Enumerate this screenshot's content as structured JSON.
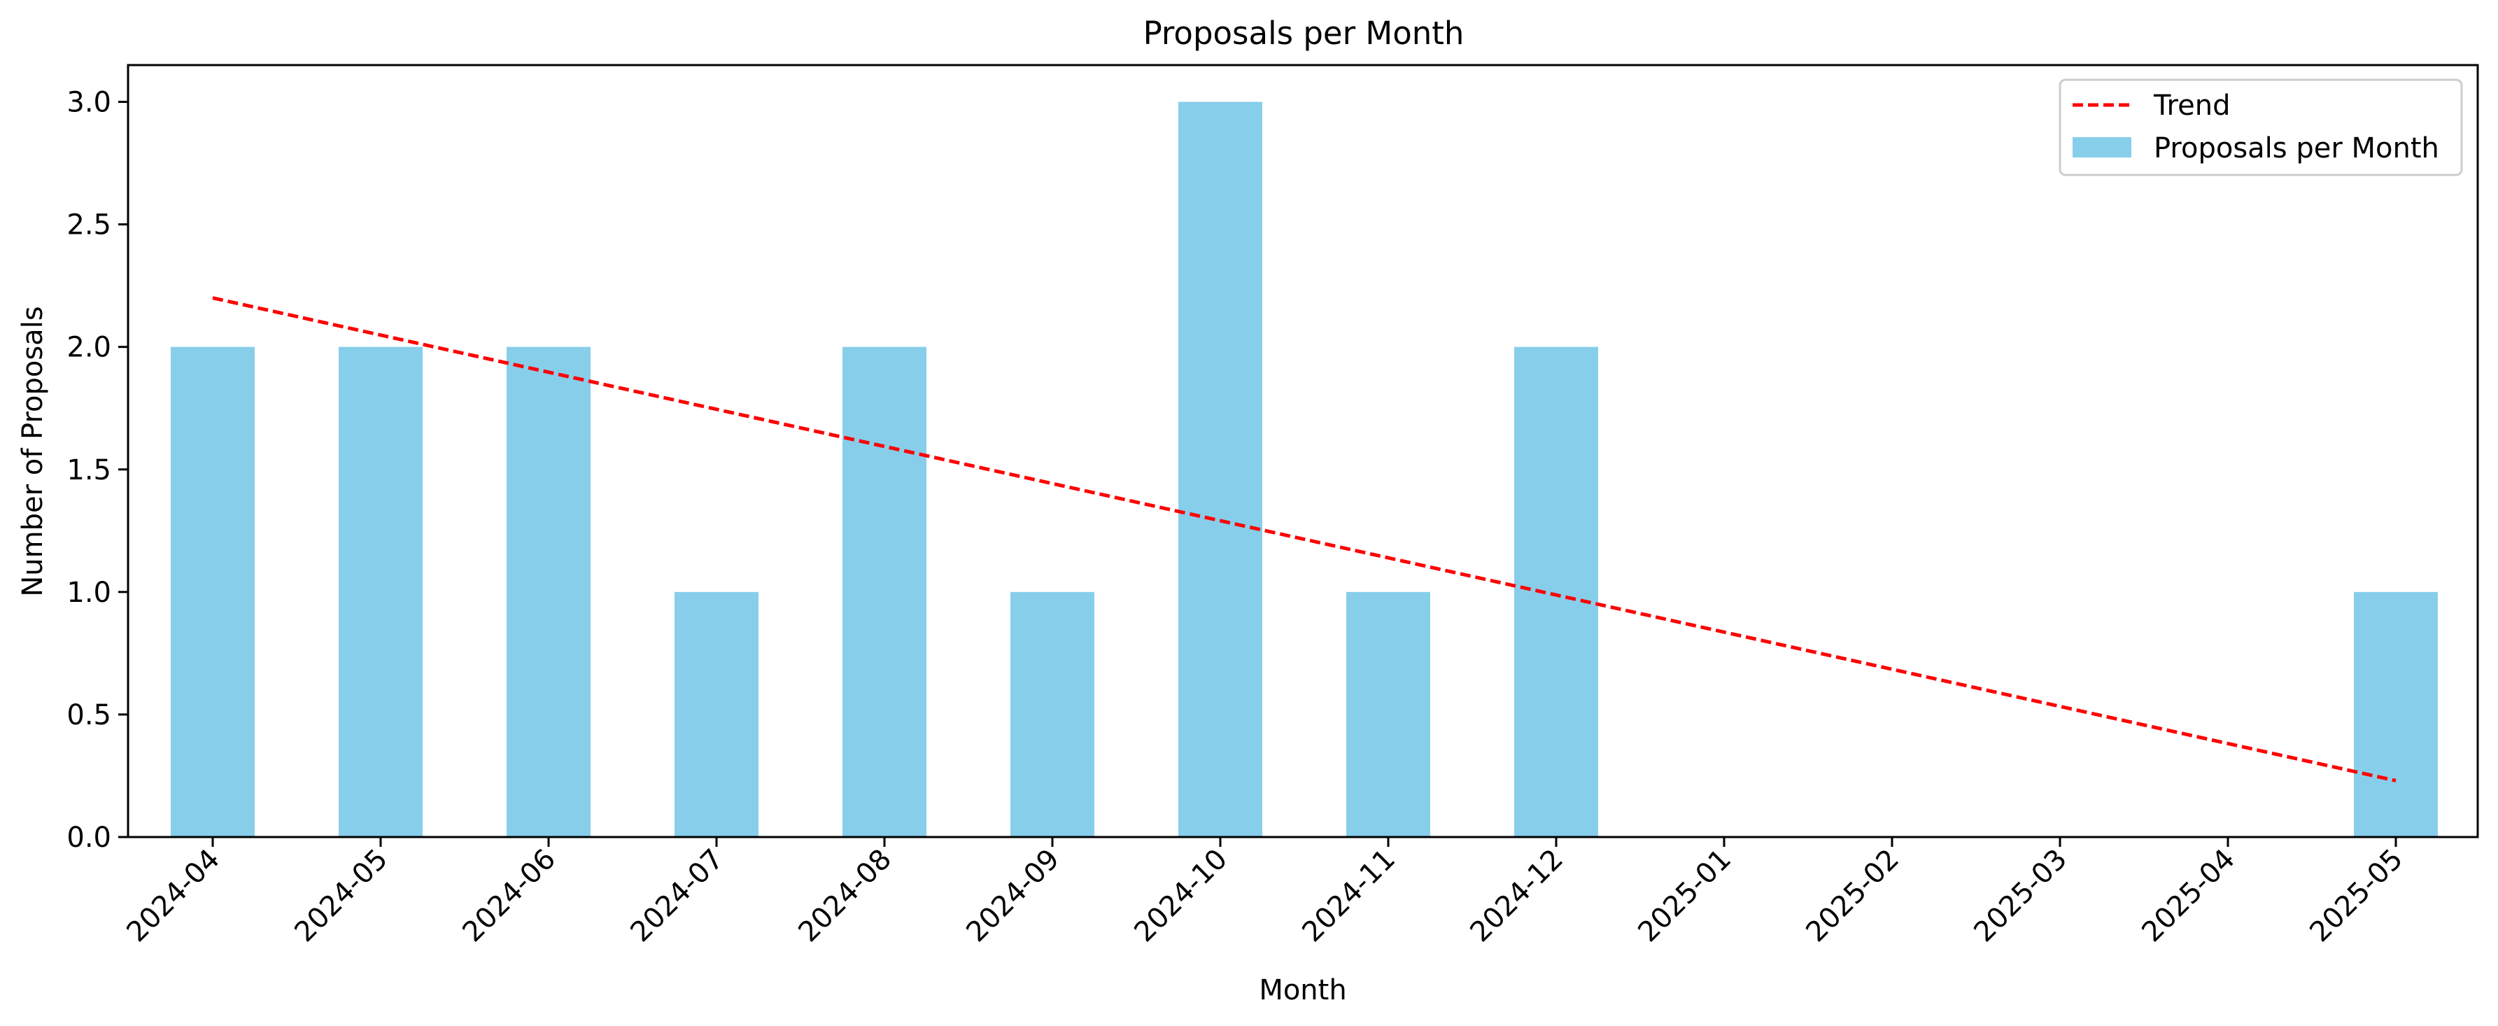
{
  "chart_data": {
    "type": "bar",
    "title": "Proposals per Month",
    "xlabel": "Month",
    "ylabel": "Number of Proposals",
    "categories": [
      "2024-04",
      "2024-05",
      "2024-06",
      "2024-07",
      "2024-08",
      "2024-09",
      "2024-10",
      "2024-11",
      "2024-12",
      "2025-01",
      "2025-02",
      "2025-03",
      "2025-04",
      "2025-05"
    ],
    "series": [
      {
        "name": "Proposals per Month",
        "values": [
          2,
          2,
          2,
          1,
          2,
          1,
          3,
          1,
          2,
          0,
          0,
          0,
          0,
          1
        ],
        "color": "#87ceeb"
      }
    ],
    "trend": {
      "name": "Trend",
      "start": 2.2,
      "end": 0.23,
      "color": "#ff0000",
      "style": "dashed"
    },
    "ylim": [
      0,
      3.15
    ],
    "yticks": [
      "0.0",
      "0.5",
      "1.0",
      "1.5",
      "2.0",
      "2.5",
      "3.0"
    ],
    "grid": false,
    "legend_position": "top-right"
  }
}
